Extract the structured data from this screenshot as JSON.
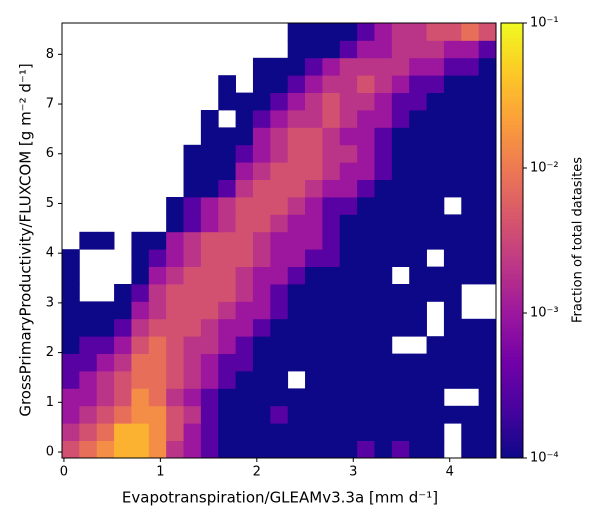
{
  "chart_data": {
    "type": "heatmap",
    "cmap": "plasma",
    "log_color": true,
    "xlabel": "Evapotranspiration/GLEAMv3.3a [mm d⁻¹]",
    "ylabel": "GrossPrimaryProductivity/FLUXCOM [g m⁻² d⁻¹]",
    "colorbar_label": "Fraction of total datasites",
    "xlim": [
      -0.02,
      4.48
    ],
    "ylim": [
      -0.12,
      8.63
    ],
    "xticks": [
      0,
      1,
      2,
      3,
      4
    ],
    "yticks": [
      0,
      1,
      2,
      3,
      4,
      5,
      6,
      7,
      8
    ],
    "clim": [
      0.0001,
      0.1
    ],
    "cticks": [
      {
        "value": 0.0001,
        "label": "10⁻⁴"
      },
      {
        "value": 0.001,
        "label": "10⁻³"
      },
      {
        "value": 0.01,
        "label": "10⁻²"
      },
      {
        "value": 0.1,
        "label": "10⁻¹"
      }
    ],
    "xbins": [
      -0.02,
      0.16,
      0.34,
      0.52,
      0.7,
      0.88,
      1.06,
      1.24,
      1.42,
      1.6,
      1.78,
      1.96,
      2.14,
      2.32,
      2.5,
      2.68,
      2.86,
      3.04,
      3.22,
      3.4,
      3.58,
      3.76,
      3.94,
      4.12,
      4.3,
      4.48
    ],
    "ybins": [
      -0.12,
      0.23,
      0.58,
      0.93,
      1.28,
      1.63,
      1.98,
      2.33,
      2.68,
      3.03,
      3.38,
      3.73,
      4.08,
      4.43,
      4.78,
      5.13,
      5.48,
      5.83,
      6.18,
      6.53,
      6.88,
      7.23,
      7.58,
      7.93,
      8.28,
      8.63
    ],
    "z": [
      [
        0.004,
        0.008,
        0.015,
        0.03,
        0.03,
        0.015,
        0.002,
        0.001,
        0.0003,
        0.0001,
        0.0001,
        0.0001,
        0.0001,
        0.0001,
        0.0001,
        0.0001,
        0.0001,
        0.0003,
        0.0001,
        0.0003,
        0.0001,
        0.0001,
        null,
        0.0001,
        0.0001
      ],
      [
        0.002,
        0.004,
        0.008,
        0.03,
        0.03,
        0.015,
        0.004,
        0.001,
        0.0003,
        0.0001,
        0.0001,
        0.0001,
        0.0001,
        0.0001,
        0.0001,
        0.0001,
        0.0001,
        0.0001,
        0.0001,
        0.0001,
        0.0001,
        0.0001,
        null,
        0.0001,
        0.0001
      ],
      [
        0.001,
        0.002,
        0.004,
        0.008,
        0.015,
        0.015,
        0.004,
        0.002,
        0.0003,
        0.0001,
        0.0001,
        0.0001,
        0.0003,
        0.0001,
        0.0001,
        0.0001,
        0.0001,
        0.0001,
        0.0001,
        0.0001,
        0.0001,
        0.0001,
        0.0001,
        0.0001,
        0.0001
      ],
      [
        0.001,
        0.001,
        0.002,
        0.004,
        0.015,
        0.008,
        0.002,
        0.001,
        0.0003,
        0.0001,
        0.0001,
        0.0001,
        0.0001,
        0.0001,
        0.0001,
        0.0001,
        0.0001,
        0.0001,
        0.0001,
        0.0001,
        0.0001,
        0.0001,
        null,
        null,
        0.0001
      ],
      [
        0.0003,
        0.001,
        0.002,
        0.004,
        0.008,
        0.008,
        0.004,
        0.002,
        0.001,
        0.0003,
        0.0001,
        0.0001,
        0.0001,
        null,
        0.0001,
        0.0001,
        0.0001,
        0.0001,
        0.0001,
        0.0001,
        0.0001,
        0.0001,
        0.0001,
        0.0001,
        0.0001
      ],
      [
        0.0003,
        0.0003,
        0.001,
        0.002,
        0.008,
        0.008,
        0.004,
        0.002,
        0.001,
        0.0003,
        0.0003,
        0.0001,
        0.0001,
        0.0001,
        0.0001,
        0.0001,
        0.0001,
        0.0001,
        0.0001,
        0.0001,
        0.0001,
        0.0001,
        0.0001,
        0.0001,
        0.0001
      ],
      [
        0.0001,
        0.0003,
        0.0003,
        0.001,
        0.004,
        0.008,
        0.004,
        0.002,
        0.002,
        0.001,
        0.0003,
        0.0001,
        0.0001,
        0.0001,
        0.0001,
        0.0001,
        0.0001,
        0.0001,
        0.0001,
        null,
        null,
        0.0001,
        0.0001,
        0.0001,
        0.0001
      ],
      [
        0.0001,
        0.0001,
        0.0001,
        0.0003,
        0.002,
        0.004,
        0.004,
        0.004,
        0.002,
        0.001,
        0.001,
        0.0003,
        0.0001,
        0.0001,
        0.0001,
        0.0001,
        0.0001,
        0.0001,
        0.0001,
        0.0001,
        0.0001,
        null,
        0.0001,
        0.0001,
        0.0001
      ],
      [
        0.0001,
        0.0001,
        0.0001,
        0.0001,
        0.001,
        0.002,
        0.004,
        0.004,
        0.004,
        0.002,
        0.001,
        0.001,
        0.0003,
        0.0001,
        0.0001,
        0.0001,
        0.0001,
        0.0001,
        0.0001,
        0.0001,
        0.0001,
        null,
        0.0001,
        null,
        null
      ],
      [
        0.0001,
        null,
        null,
        0.0001,
        0.0003,
        0.002,
        0.004,
        0.004,
        0.004,
        0.004,
        0.002,
        0.001,
        0.0003,
        0.0001,
        0.0001,
        0.0001,
        0.0001,
        0.0001,
        0.0001,
        0.0001,
        0.0001,
        0.0001,
        0.0001,
        null,
        null
      ],
      [
        0.0001,
        null,
        null,
        null,
        0.0001,
        0.001,
        0.002,
        0.004,
        0.004,
        0.004,
        0.002,
        0.001,
        0.001,
        0.0003,
        0.0001,
        0.0001,
        0.0001,
        0.0001,
        0.0001,
        null,
        0.0001,
        0.0001,
        0.0001,
        0.0001,
        0.0001
      ],
      [
        0.0001,
        null,
        null,
        null,
        0.0001,
        0.0003,
        0.001,
        0.002,
        0.004,
        0.004,
        0.004,
        0.002,
        0.001,
        0.001,
        0.0003,
        0.0003,
        0.0001,
        0.0001,
        0.0001,
        0.0001,
        0.0001,
        null,
        0.0001,
        0.0001,
        0.0001
      ],
      [
        null,
        0.0001,
        0.0001,
        null,
        0.0001,
        0.0001,
        0.001,
        0.002,
        0.004,
        0.004,
        0.004,
        0.002,
        0.001,
        0.001,
        0.001,
        0.0003,
        0.0001,
        0.0001,
        0.0001,
        0.0001,
        0.0001,
        0.0001,
        0.0001,
        0.0001,
        0.0001
      ],
      [
        null,
        null,
        null,
        null,
        null,
        null,
        0.0001,
        0.0003,
        0.001,
        0.002,
        0.004,
        0.004,
        0.002,
        0.001,
        0.001,
        0.0003,
        0.0001,
        0.0001,
        0.0001,
        0.0001,
        0.0001,
        0.0001,
        0.0001,
        0.0001,
        0.0001
      ],
      [
        null,
        null,
        null,
        null,
        null,
        null,
        0.0001,
        0.0003,
        0.001,
        0.002,
        0.004,
        0.004,
        0.004,
        0.002,
        0.001,
        0.0003,
        0.0003,
        0.0001,
        0.0001,
        0.0001,
        0.0001,
        0.0001,
        null,
        0.0001,
        0.0001
      ],
      [
        null,
        null,
        null,
        null,
        null,
        null,
        null,
        0.0001,
        0.0001,
        0.0003,
        0.002,
        0.004,
        0.004,
        0.004,
        0.002,
        0.001,
        0.001,
        0.0003,
        0.0001,
        0.0001,
        0.0001,
        0.0001,
        0.0001,
        0.0001,
        0.0001
      ],
      [
        null,
        null,
        null,
        null,
        null,
        null,
        null,
        0.0001,
        0.0001,
        0.0001,
        0.001,
        0.002,
        0.004,
        0.004,
        0.004,
        0.002,
        0.001,
        0.001,
        0.0003,
        0.0001,
        0.0001,
        0.0001,
        0.0001,
        0.0001,
        0.0001
      ],
      [
        null,
        null,
        null,
        null,
        null,
        null,
        null,
        0.0001,
        0.0001,
        0.0001,
        0.0003,
        0.001,
        0.002,
        0.004,
        0.004,
        0.002,
        0.002,
        0.001,
        0.0003,
        0.0001,
        0.0001,
        0.0001,
        0.0001,
        0.0001,
        0.0001
      ],
      [
        null,
        null,
        null,
        null,
        null,
        null,
        null,
        null,
        0.0001,
        0.0001,
        0.0001,
        0.001,
        0.002,
        0.004,
        0.004,
        0.002,
        0.001,
        0.001,
        0.0003,
        0.0001,
        0.0001,
        0.0001,
        0.0001,
        0.0001,
        0.0001
      ],
      [
        null,
        null,
        null,
        null,
        null,
        null,
        null,
        null,
        0.0001,
        null,
        0.0001,
        0.0003,
        0.001,
        0.002,
        0.002,
        0.004,
        0.002,
        0.001,
        0.001,
        0.0003,
        0.0001,
        0.0001,
        0.0001,
        0.0001,
        0.0001
      ],
      [
        null,
        null,
        null,
        null,
        null,
        null,
        null,
        null,
        null,
        0.0001,
        0.0001,
        0.0001,
        0.0003,
        0.001,
        0.002,
        0.004,
        0.002,
        0.002,
        0.001,
        0.0003,
        0.0003,
        0.0001,
        0.0001,
        0.0001,
        0.0001
      ],
      [
        null,
        null,
        null,
        null,
        null,
        null,
        null,
        null,
        null,
        0.0001,
        null,
        0.0001,
        0.0001,
        0.0003,
        0.001,
        0.002,
        0.002,
        0.004,
        0.002,
        0.001,
        0.0003,
        0.0003,
        0.0001,
        0.0001,
        0.0001
      ],
      [
        null,
        null,
        null,
        null,
        null,
        null,
        null,
        null,
        null,
        null,
        null,
        0.0001,
        0.0001,
        0.0001,
        0.0003,
        0.001,
        0.002,
        0.002,
        0.002,
        0.002,
        0.001,
        0.001,
        0.0003,
        0.0003,
        0.0001
      ],
      [
        null,
        null,
        null,
        null,
        null,
        null,
        null,
        null,
        null,
        null,
        null,
        null,
        null,
        0.0001,
        0.0001,
        0.0001,
        0.0003,
        0.001,
        0.001,
        0.002,
        0.002,
        0.002,
        0.001,
        0.001,
        0.0003
      ],
      [
        null,
        null,
        null,
        null,
        null,
        null,
        null,
        null,
        null,
        null,
        null,
        null,
        null,
        0.0001,
        0.0001,
        0.0001,
        0.0001,
        0.0003,
        0.001,
        0.002,
        0.002,
        0.004,
        0.004,
        0.008,
        0.004
      ]
    ]
  }
}
